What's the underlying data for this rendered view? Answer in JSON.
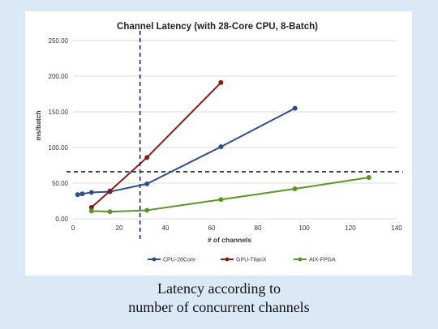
{
  "chart_data": {
    "type": "line",
    "title": "Channel Latency (with 28-Core CPU, 8-Batch)",
    "xlabel": "# of channels",
    "ylabel": "ms/batch",
    "xlim": [
      0,
      140
    ],
    "ylim": [
      0,
      250
    ],
    "x_ticks": [
      "0",
      "20",
      "40",
      "60",
      "80",
      "100",
      "120",
      "140"
    ],
    "y_ticks": [
      "0.00",
      "50.00",
      "100.00",
      "150.00",
      "200.00",
      "250.00"
    ],
    "grid": true,
    "legend_position": "bottom",
    "series": [
      {
        "name": "CPU-28Core",
        "color": "#2e4d8f",
        "points": [
          [
            2,
            34
          ],
          [
            4,
            35
          ],
          [
            8,
            37
          ],
          [
            16,
            38
          ],
          [
            32,
            49
          ],
          [
            64,
            101
          ],
          [
            96,
            155
          ]
        ]
      },
      {
        "name": "GPU-TitanX",
        "color": "#8b1a14",
        "points": [
          [
            8,
            16
          ],
          [
            16,
            39
          ],
          [
            32,
            86
          ],
          [
            64,
            191
          ]
        ]
      },
      {
        "name": "AIX-FPGA",
        "color": "#5a9624",
        "points": [
          [
            8,
            11
          ],
          [
            16,
            10
          ],
          [
            32,
            12
          ],
          [
            64,
            27
          ],
          [
            96,
            42
          ],
          [
            128,
            58
          ]
        ]
      }
    ],
    "reference_lines": {
      "vertical_x": 29,
      "horizontal_y": 66,
      "color": "#1a1f6b",
      "style": "dashed"
    }
  },
  "caption": {
    "line1": "Latency according to",
    "line2": "number of concurrent channels"
  }
}
